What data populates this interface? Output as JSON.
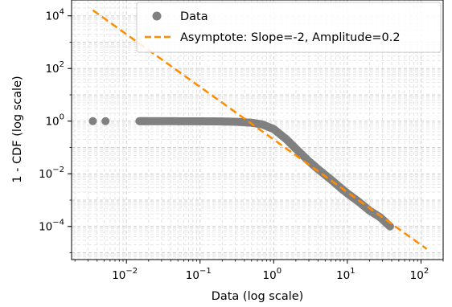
{
  "chart_data": {
    "type": "scatter",
    "title": "",
    "xlabel": "Data (log scale)",
    "ylabel": "1 - CDF (log scale)",
    "xscale": "log",
    "yscale": "log",
    "xlim": [
      0.0018,
      200
    ],
    "ylim": [
      5.5e-06,
      40000
    ],
    "grid": true,
    "legend_position": "top-right",
    "x_ticks": [
      {
        "value": 0.01,
        "base": "10",
        "exp": "−2"
      },
      {
        "value": 0.1,
        "base": "10",
        "exp": "−1"
      },
      {
        "value": 1,
        "base": "10",
        "exp": "0"
      },
      {
        "value": 10,
        "base": "10",
        "exp": "1"
      },
      {
        "value": 100,
        "base": "10",
        "exp": "2"
      }
    ],
    "y_ticks": [
      {
        "value": 0.0001,
        "base": "10",
        "exp": "−4"
      },
      {
        "value": 0.01,
        "base": "10",
        "exp": "−2"
      },
      {
        "value": 1,
        "base": "10",
        "exp": "0"
      },
      {
        "value": 100,
        "base": "10",
        "exp": "2"
      },
      {
        "value": 10000,
        "base": "10",
        "exp": "4"
      }
    ],
    "series": [
      {
        "name": "Data",
        "kind": "scatter",
        "color": "#808080",
        "points": [
          [
            0.0035,
            1.0
          ],
          [
            0.0052,
            1.0
          ],
          [
            0.015,
            0.999
          ],
          [
            0.02,
            0.998
          ],
          [
            0.03,
            0.997
          ],
          [
            0.05,
            0.994
          ],
          [
            0.08,
            0.99
          ],
          [
            0.12,
            0.985
          ],
          [
            0.18,
            0.975
          ],
          [
            0.25,
            0.96
          ],
          [
            0.35,
            0.93
          ],
          [
            0.5,
            0.87
          ],
          [
            0.7,
            0.75
          ],
          [
            1.0,
            0.5
          ],
          [
            1.5,
            0.2
          ],
          [
            2.0,
            0.09
          ],
          [
            3.0,
            0.03
          ],
          [
            4.0,
            0.015
          ],
          [
            6.0,
            0.006
          ],
          [
            8.0,
            0.003
          ],
          [
            10.0,
            0.0018
          ],
          [
            14.0,
            0.0009
          ],
          [
            20.0,
            0.0004
          ],
          [
            28.0,
            0.00022
          ],
          [
            38.0,
            0.0001
          ]
        ]
      },
      {
        "name": "Asymptote: Slope=-2, Amplitude=0.2",
        "kind": "line",
        "style": "dashed",
        "color": "#ff8c00",
        "slope": -2,
        "amplitude": 0.2,
        "x": [
          0.0035,
          120
        ]
      }
    ]
  }
}
